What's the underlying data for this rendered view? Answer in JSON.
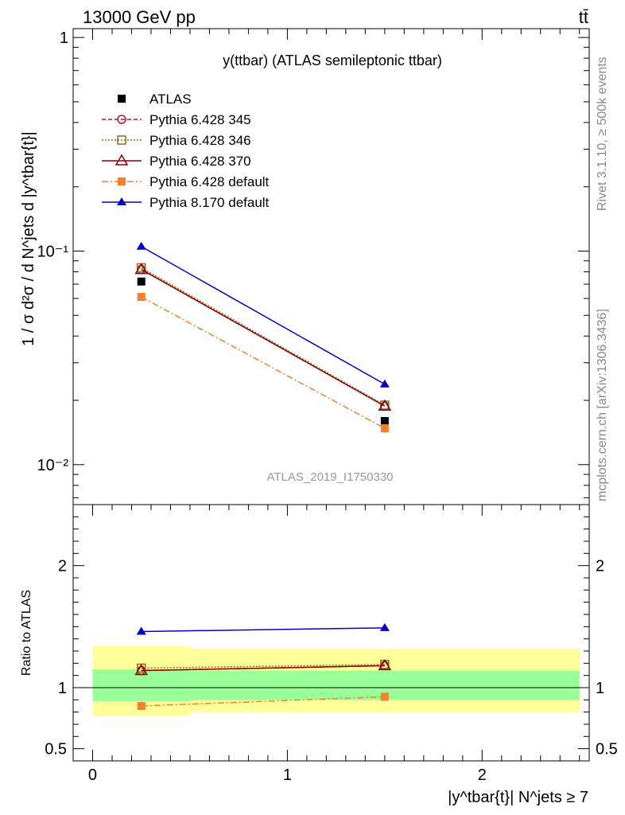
{
  "header": {
    "energy_label": "13000 GeV pp",
    "process_label": "tt̄"
  },
  "side_labels": {
    "rivet": "Rivet 3.1.10, ≥ 500k events",
    "mcplots": "mcplots.cern.ch [arXiv:1306.3436]"
  },
  "analysis_id": "ATLAS_2019_I1750330",
  "chart_data": [
    {
      "type": "line",
      "title": "y(ttbar) (ATLAS semileptonic ttbar)",
      "ylabel": "1 / σ d²σ / d N^jets d |y^tbar{t}|",
      "yscale": "log",
      "ylim": [
        0.0065,
        1.1
      ],
      "y_ticks": [
        {
          "value": 0.01,
          "label": "10⁻²"
        },
        {
          "value": 0.1,
          "label": "10⁻¹"
        },
        {
          "value": 1,
          "label": "1"
        }
      ],
      "xlim": [
        -0.1,
        2.55
      ],
      "x": [
        0.25,
        1.5
      ],
      "legend_position": "top-left",
      "series": [
        {
          "name": "ATLAS",
          "values": [
            0.072,
            0.016
          ],
          "color": "#000000",
          "marker": "square",
          "style": "points"
        },
        {
          "name": "Pythia 6.428 345",
          "values": [
            0.082,
            0.0188
          ],
          "color": "#b2182b",
          "marker": "circle-open",
          "style": "dashed"
        },
        {
          "name": "Pythia 6.428 346",
          "values": [
            0.0835,
            0.019
          ],
          "color": "#8c6d1f",
          "marker": "square-open",
          "style": "dotted"
        },
        {
          "name": "Pythia 6.428 370",
          "values": [
            0.082,
            0.0188
          ],
          "color": "#8b0000",
          "marker": "triangle-open",
          "style": "solid"
        },
        {
          "name": "Pythia 6.428 default",
          "values": [
            0.061,
            0.0148
          ],
          "color": "#f57f2a",
          "marker": "square",
          "style": "dashdot"
        },
        {
          "name": "Pythia 8.170 default",
          "values": [
            0.105,
            0.0238
          ],
          "color": "#0000cc",
          "marker": "triangle",
          "style": "solid"
        }
      ]
    },
    {
      "type": "line",
      "ylabel": "Ratio to ATLAS",
      "xlabel": "|y^tbar{t}| N^jets ≥ 7",
      "ylim": [
        0.4,
        2.5
      ],
      "y_ticks": [
        {
          "value": 0.5,
          "label": "0.5"
        },
        {
          "value": 1,
          "label": "1"
        },
        {
          "value": 2,
          "label": "2"
        }
      ],
      "xlim": [
        -0.1,
        2.55
      ],
      "x_ticks": [
        {
          "value": 0,
          "label": "0"
        },
        {
          "value": 1,
          "label": "1"
        },
        {
          "value": 2,
          "label": "2"
        }
      ],
      "x": [
        0.25,
        1.5
      ],
      "bands": [
        {
          "x0": 0.0,
          "x1": 0.5,
          "yellow": [
            0.77,
            1.34
          ],
          "green": [
            0.89,
            1.15
          ]
        },
        {
          "x0": 0.5,
          "x1": 2.5,
          "yellow": [
            0.8,
            1.32
          ],
          "green": [
            0.9,
            1.14
          ]
        }
      ],
      "reference_line": 1.0,
      "series": [
        {
          "name": "Pythia 6.428 345",
          "values": [
            1.14,
            1.18
          ]
        },
        {
          "name": "Pythia 6.428 346",
          "values": [
            1.16,
            1.19
          ]
        },
        {
          "name": "Pythia 6.428 370",
          "values": [
            1.14,
            1.18
          ]
        },
        {
          "name": "Pythia 6.428 default",
          "values": [
            0.85,
            0.925
          ]
        },
        {
          "name": "Pythia 8.170 default",
          "values": [
            1.46,
            1.49
          ]
        }
      ]
    }
  ]
}
